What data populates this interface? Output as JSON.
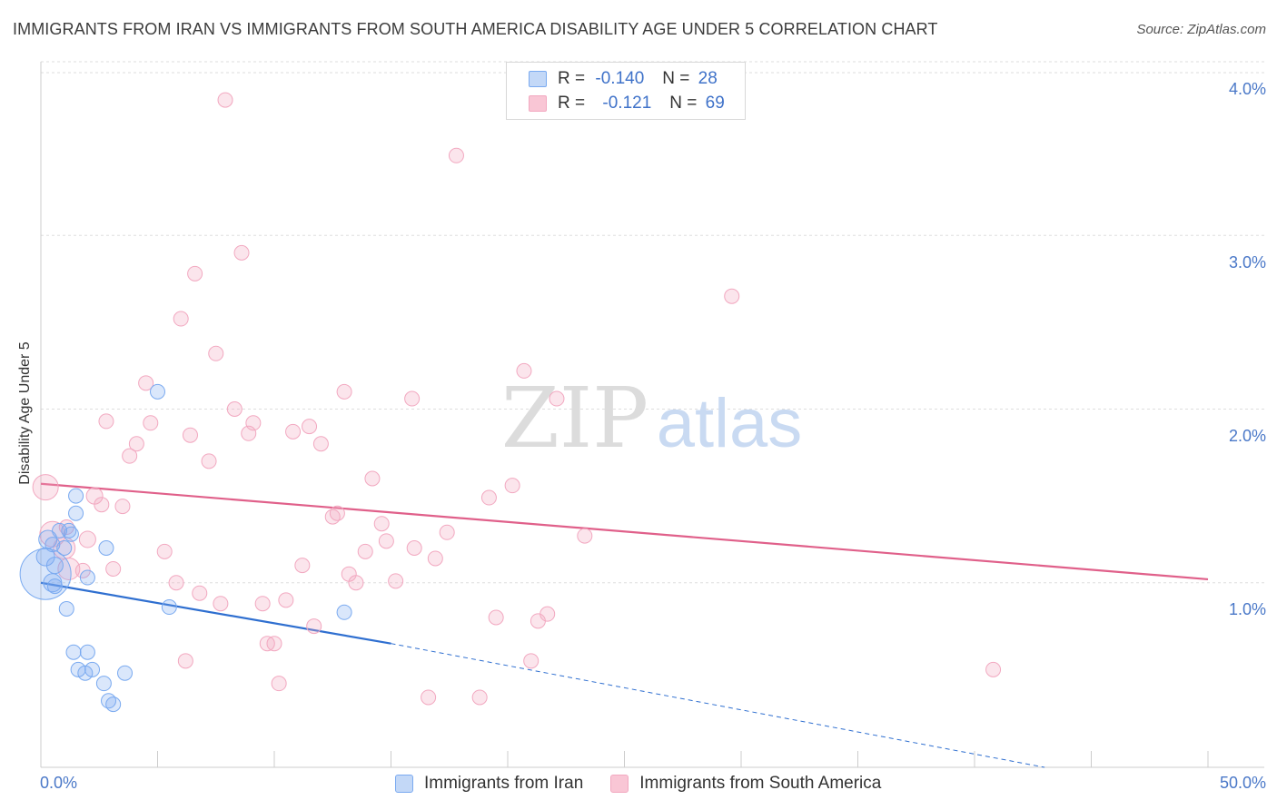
{
  "title": "IMMIGRANTS FROM IRAN VS IMMIGRANTS FROM SOUTH AMERICA DISABILITY AGE UNDER 5 CORRELATION CHART",
  "source": "Source: ZipAtlas.com",
  "watermark": {
    "zip": "ZIP",
    "atlas": "atlas"
  },
  "legend": {
    "rows": [
      {
        "r_label": "R =",
        "r_value": "-0.140",
        "n_label": "N =",
        "n_value": "28"
      },
      {
        "r_label": "R =",
        "r_value": "-0.121",
        "n_label": "N =",
        "n_value": "69"
      }
    ]
  },
  "chart_data": {
    "type": "scatter",
    "ylabel": "Disability Age Under 5",
    "xlabel": "",
    "xlim": [
      0,
      50
    ],
    "ylim": [
      0,
      4.0
    ],
    "x_tick_labels": [
      "0.0%",
      "50.0%"
    ],
    "y_tick_labels": [
      "1.0%",
      "2.0%",
      "3.0%",
      "4.0%"
    ],
    "y_ticks": [
      1.0,
      2.0,
      3.0,
      4.0
    ],
    "grid": true,
    "legend_position": "top-center",
    "series": [
      {
        "name": "Immigrants from Iran",
        "color": "#7aaaf0",
        "line_color": "#2f6fd0",
        "trend": {
          "x0": 0,
          "y0": 1.0,
          "x1": 15,
          "y1": 0.65,
          "dashed_to_x": 43,
          "dashed_to_y": 0.0
        },
        "points": [
          [
            0.3,
            1.25,
            10
          ],
          [
            0.2,
            1.15,
            10
          ],
          [
            0.5,
            1.22,
            8
          ],
          [
            0.6,
            1.1,
            9
          ],
          [
            0.5,
            1.0,
            10
          ],
          [
            0.2,
            1.05,
            28
          ],
          [
            0.8,
            1.3,
            8
          ],
          [
            1.0,
            1.2,
            8
          ],
          [
            1.2,
            1.3,
            8
          ],
          [
            1.5,
            1.4,
            8
          ],
          [
            1.5,
            1.5,
            8
          ],
          [
            0.6,
            0.98,
            8
          ],
          [
            2.0,
            1.03,
            8
          ],
          [
            1.1,
            0.85,
            8
          ],
          [
            2.8,
            1.2,
            8
          ],
          [
            5.0,
            2.1,
            8
          ],
          [
            1.4,
            0.6,
            8
          ],
          [
            2.0,
            0.6,
            8
          ],
          [
            1.6,
            0.5,
            8
          ],
          [
            2.2,
            0.5,
            8
          ],
          [
            1.9,
            0.48,
            8
          ],
          [
            2.7,
            0.42,
            8
          ],
          [
            3.6,
            0.48,
            8
          ],
          [
            2.9,
            0.32,
            8
          ],
          [
            3.1,
            0.3,
            8
          ],
          [
            5.5,
            0.86,
            8
          ],
          [
            13.0,
            0.83,
            8
          ],
          [
            1.3,
            1.28,
            8
          ]
        ]
      },
      {
        "name": "Immigrants from South America",
        "color": "#f2a8c0",
        "line_color": "#e0608a",
        "trend": {
          "x0": 0,
          "y0": 1.57,
          "x1": 50,
          "y1": 1.02
        },
        "points": [
          [
            0.2,
            1.55,
            14
          ],
          [
            0.5,
            1.28,
            14
          ],
          [
            1.0,
            1.2,
            12
          ],
          [
            1.2,
            1.08,
            12
          ],
          [
            1.1,
            1.32,
            8
          ],
          [
            1.8,
            1.07,
            8
          ],
          [
            2.0,
            1.25,
            9
          ],
          [
            2.3,
            1.5,
            9
          ],
          [
            2.6,
            1.45,
            8
          ],
          [
            3.1,
            1.08,
            8
          ],
          [
            3.5,
            1.44,
            8
          ],
          [
            3.8,
            1.73,
            8
          ],
          [
            4.1,
            1.8,
            8
          ],
          [
            2.8,
            1.93,
            8
          ],
          [
            4.5,
            2.15,
            8
          ],
          [
            4.7,
            1.92,
            8
          ],
          [
            5.3,
            1.18,
            8
          ],
          [
            5.8,
            1.0,
            8
          ],
          [
            6.0,
            2.52,
            8
          ],
          [
            6.2,
            0.55,
            8
          ],
          [
            6.4,
            1.85,
            8
          ],
          [
            6.6,
            2.78,
            8
          ],
          [
            6.8,
            0.94,
            8
          ],
          [
            7.2,
            1.7,
            8
          ],
          [
            7.5,
            2.32,
            8
          ],
          [
            7.7,
            0.88,
            8
          ],
          [
            7.9,
            3.78,
            8
          ],
          [
            8.3,
            2.0,
            8
          ],
          [
            8.6,
            2.9,
            8
          ],
          [
            8.9,
            1.86,
            8
          ],
          [
            9.1,
            1.92,
            8
          ],
          [
            9.5,
            0.88,
            8
          ],
          [
            9.7,
            0.65,
            8
          ],
          [
            10.0,
            0.65,
            8
          ],
          [
            10.2,
            0.42,
            8
          ],
          [
            10.5,
            0.9,
            8
          ],
          [
            10.8,
            1.87,
            8
          ],
          [
            11.2,
            1.1,
            8
          ],
          [
            11.5,
            1.9,
            8
          ],
          [
            11.7,
            0.75,
            8
          ],
          [
            12.0,
            1.8,
            8
          ],
          [
            12.5,
            1.38,
            8
          ],
          [
            12.7,
            1.4,
            8
          ],
          [
            13.0,
            2.1,
            8
          ],
          [
            13.2,
            1.05,
            8
          ],
          [
            13.5,
            1.0,
            8
          ],
          [
            13.9,
            1.18,
            8
          ],
          [
            14.2,
            1.6,
            8
          ],
          [
            14.6,
            1.34,
            8
          ],
          [
            14.8,
            1.24,
            8
          ],
          [
            15.2,
            1.01,
            8
          ],
          [
            15.9,
            2.06,
            8
          ],
          [
            16.0,
            1.2,
            8
          ],
          [
            16.6,
            0.34,
            8
          ],
          [
            16.9,
            1.14,
            8
          ],
          [
            17.4,
            1.29,
            8
          ],
          [
            17.8,
            3.46,
            8
          ],
          [
            18.8,
            0.34,
            8
          ],
          [
            19.2,
            1.49,
            8
          ],
          [
            19.5,
            0.8,
            8
          ],
          [
            20.2,
            1.56,
            8
          ],
          [
            20.7,
            2.22,
            8
          ],
          [
            21.0,
            0.55,
            8
          ],
          [
            21.3,
            0.78,
            8
          ],
          [
            21.7,
            0.82,
            8
          ],
          [
            22.1,
            2.06,
            8
          ],
          [
            23.3,
            1.27,
            8
          ],
          [
            29.6,
            2.65,
            8
          ],
          [
            40.8,
            0.5,
            8
          ]
        ]
      }
    ]
  }
}
